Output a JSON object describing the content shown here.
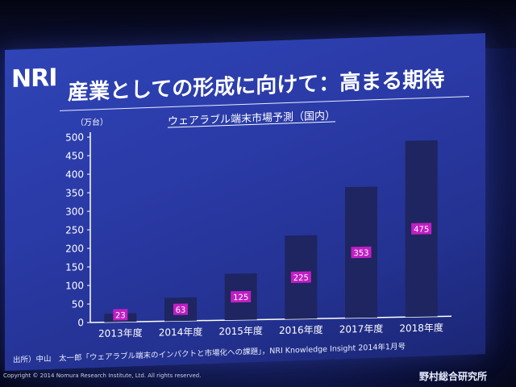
{
  "logo": "NRI",
  "title": "産業としての形成に向けて：高まる期待",
  "chart_data": {
    "type": "bar",
    "title": "ウェアラブル端末市場予測（国内）",
    "ylabel": "（万台）",
    "xlabel": "",
    "ylim": [
      0,
      500
    ],
    "yticks": [
      0,
      50,
      100,
      150,
      200,
      250,
      300,
      350,
      400,
      450,
      500
    ],
    "categories": [
      "2013年度",
      "2014年度",
      "2015年度",
      "2016年度",
      "2017年度",
      "2018年度"
    ],
    "values": [
      23,
      63,
      125,
      225,
      353,
      475
    ],
    "data_labels": [
      "23",
      "63",
      "125",
      "225",
      "353",
      "475"
    ],
    "bar_color": "#1e2560",
    "label_color": "#c01fc4",
    "grid": false,
    "legend": "none"
  },
  "source": "出所）中山　太一郎「ウェアラブル端末のインパクトと市場化への課題」，NRI Knowledge Insight 2014年1月号",
  "copyright": "Copyright © 2014 Nomura Research Institute, Ltd. All rights reserved.",
  "company": "野村総合研究所"
}
